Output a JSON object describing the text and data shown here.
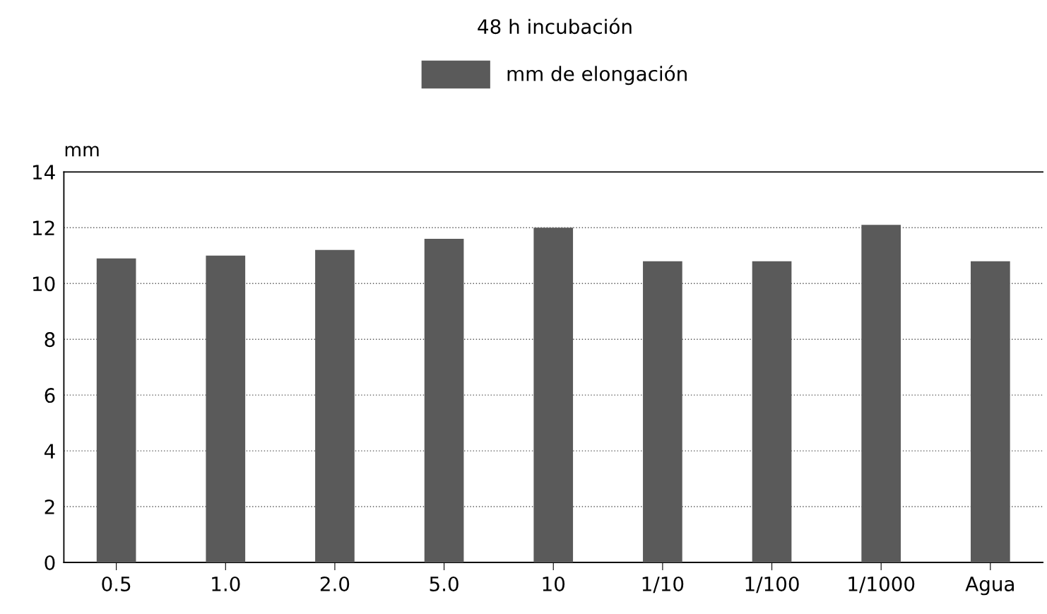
{
  "chart_data": {
    "type": "bar",
    "title": "48 h incubación",
    "ylabel": "mm",
    "categories": [
      "0.5",
      "1.0",
      "2.0",
      "5.0",
      "10",
      "1/10",
      "1/100",
      "1/1000",
      "Agua"
    ],
    "series": [
      {
        "name": "mm de elongación",
        "color": "#5a5a5a",
        "values": [
          10.9,
          11.0,
          11.2,
          11.6,
          12.0,
          10.8,
          10.8,
          12.1,
          10.8
        ]
      }
    ],
    "ylim": [
      0,
      14
    ],
    "yticks": [
      0,
      2,
      4,
      6,
      8,
      10,
      12,
      14
    ],
    "grid": "y",
    "legend": "top"
  }
}
